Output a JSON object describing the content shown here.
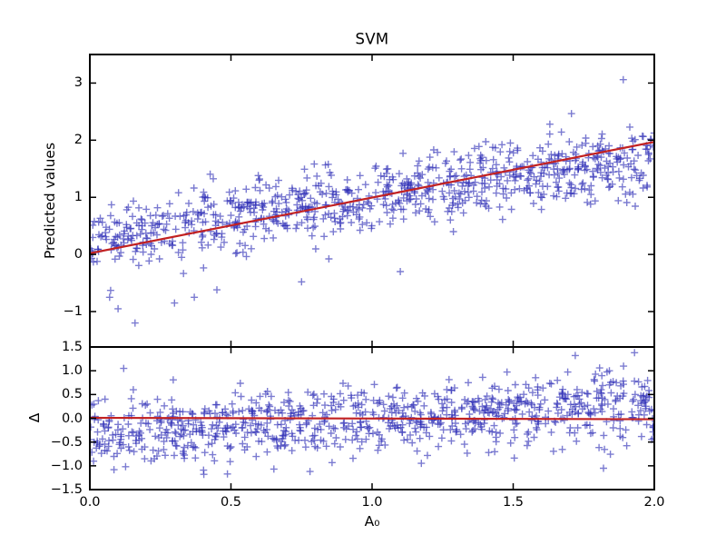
{
  "figure": {
    "background": "#ffffff",
    "frame_color": "#000000"
  },
  "title": "SVM",
  "chart_data": [
    {
      "id": "predicted-vs-A0",
      "type": "scatter",
      "title": "SVM",
      "ylabel": "Predicted values",
      "xlabel": "",
      "xlim": [
        0.0,
        2.0
      ],
      "ylim": [
        -1.62,
        3.5
      ],
      "grid": false,
      "legend": "none",
      "marker": "+",
      "marker_color": "#2a2ab4",
      "yticks": [
        {
          "v": -1,
          "label": "−1"
        },
        {
          "v": 0,
          "label": "0"
        },
        {
          "v": 1,
          "label": "1"
        },
        {
          "v": 2,
          "label": "2"
        },
        {
          "v": 3,
          "label": "3"
        }
      ],
      "xticks": [
        {
          "v": 0.0,
          "label": ""
        },
        {
          "v": 0.5,
          "label": ""
        },
        {
          "v": 1.0,
          "label": ""
        },
        {
          "v": 1.5,
          "label": ""
        },
        {
          "v": 2.0,
          "label": ""
        }
      ],
      "fit_line": {
        "color": "#c22121",
        "x1": 0.0,
        "y1": 0.02,
        "x2": 2.0,
        "y2": 1.97
      },
      "cloud": {
        "n": 860,
        "seed": 20417,
        "trend_intercept": 0.28,
        "trend_slope": 0.72,
        "noise_sigma": 0.3,
        "x_min": 0.0,
        "x_max": 2.0
      },
      "outliers": [
        [
          1.89,
          3.06
        ],
        [
          1.63,
          2.28
        ],
        [
          1.49,
          1.95
        ],
        [
          0.6,
          1.3
        ],
        [
          0.16,
          -1.2
        ],
        [
          0.1,
          -0.95
        ],
        [
          0.3,
          -0.85
        ],
        [
          0.07,
          -0.75
        ],
        [
          0.37,
          -0.75
        ],
        [
          0.45,
          -0.62
        ],
        [
          0.75,
          -0.48
        ],
        [
          1.1,
          -0.3
        ]
      ]
    },
    {
      "id": "residuals-vs-A0",
      "type": "scatter",
      "title": "",
      "ylabel": "Δ",
      "xlabel": "A₀",
      "xlim": [
        0.0,
        2.0
      ],
      "ylim": [
        -1.5,
        1.5
      ],
      "grid": false,
      "legend": "none",
      "marker": "+",
      "marker_color": "#2a2ab4",
      "yticks": [
        {
          "v": -1.5,
          "label": "−1.5"
        },
        {
          "v": -1.0,
          "label": "−1.0"
        },
        {
          "v": -0.5,
          "label": "−0.5"
        },
        {
          "v": 0.0,
          "label": "0.0"
        },
        {
          "v": 0.5,
          "label": "0.5"
        },
        {
          "v": 1.0,
          "label": "1.0"
        },
        {
          "v": 1.5,
          "label": "1.5"
        }
      ],
      "xticks": [
        {
          "v": 0.0,
          "label": "0.0"
        },
        {
          "v": 0.5,
          "label": "0.5"
        },
        {
          "v": 1.0,
          "label": "1.0"
        },
        {
          "v": 1.5,
          "label": "1.5"
        },
        {
          "v": 2.0,
          "label": "2.0"
        }
      ],
      "fit_line": {
        "color": "#c22121",
        "x1": 0.0,
        "y1": 0.01,
        "x2": 2.0,
        "y2": -0.02
      },
      "cloud": {
        "n": 860,
        "seed": 77031,
        "trend_intercept": -0.28,
        "trend_slope": 0.28,
        "noise_sigma": 0.37,
        "x_min": 0.0,
        "x_max": 2.0
      },
      "outliers": [
        [
          1.82,
          -1.05
        ],
        [
          1.93,
          1.38
        ],
        [
          1.72,
          1.32
        ],
        [
          0.12,
          1.05
        ],
        [
          0.78,
          -1.12
        ]
      ]
    }
  ]
}
